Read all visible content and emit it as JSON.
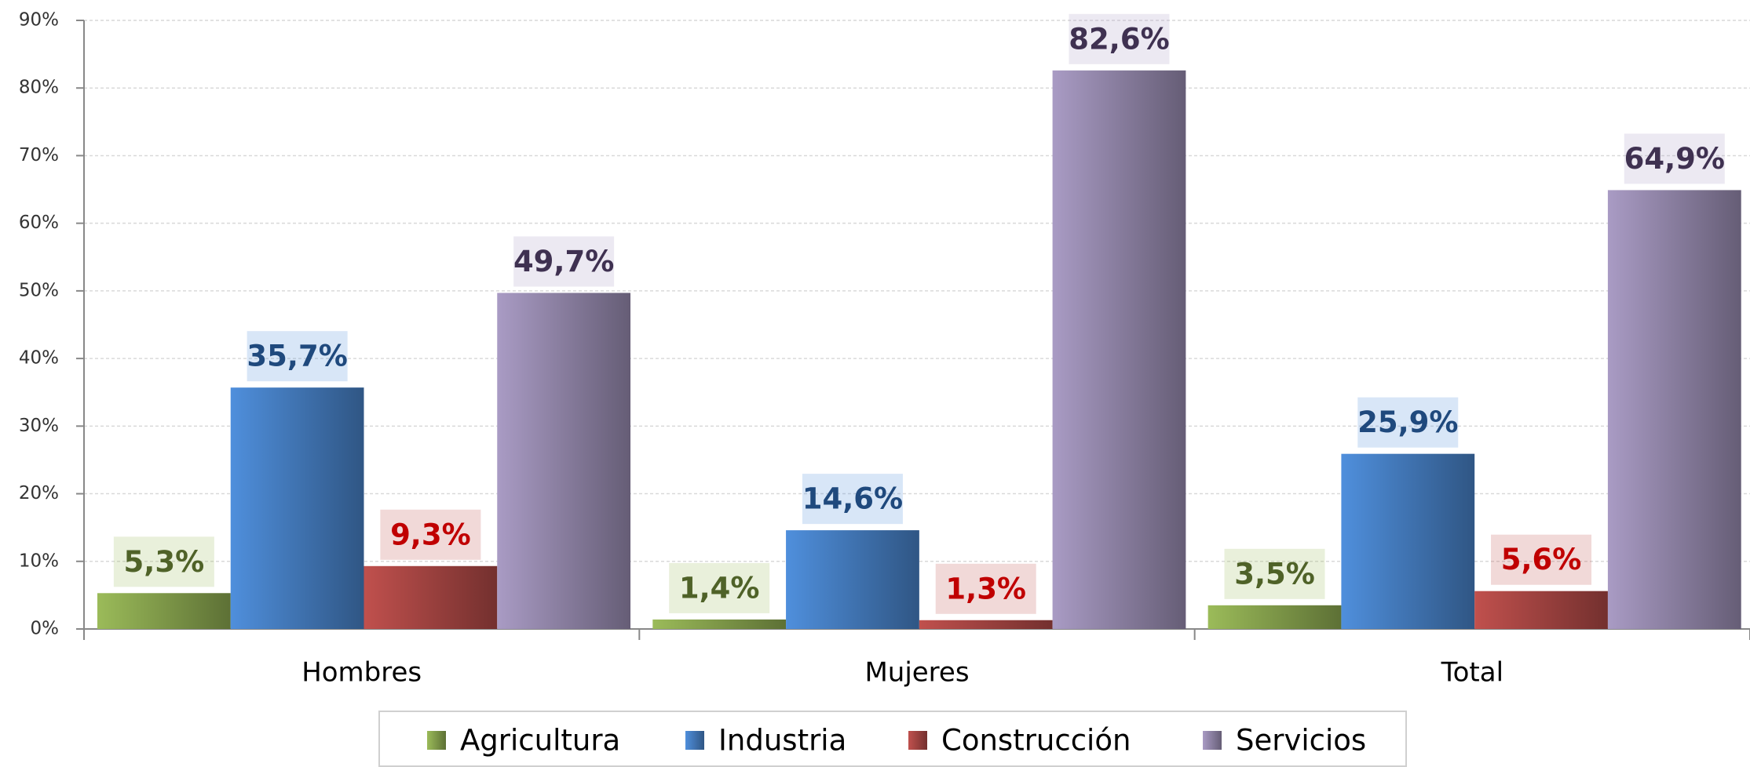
{
  "chart_data": {
    "type": "bar",
    "categories": [
      "Hombres",
      "Mujeres",
      "Total"
    ],
    "series": [
      {
        "name": "Agricultura",
        "color": "#9bbb59",
        "label_color": "#4f6228",
        "values": [
          5.3,
          1.4,
          3.5
        ],
        "value_labels": [
          "5,3%",
          "1,4%",
          "3,5%"
        ]
      },
      {
        "name": "Industria",
        "color": "#4f8fdc",
        "label_color": "#1f497d",
        "values": [
          35.7,
          14.6,
          25.9
        ],
        "value_labels": [
          "35,7%",
          "14,6%",
          "25,9%"
        ]
      },
      {
        "name": "Construcción",
        "color": "#c0504d",
        "label_color": "#c00000",
        "values": [
          9.3,
          1.3,
          5.6
        ],
        "value_labels": [
          "9,3%",
          "1,3%",
          "5,6%"
        ]
      },
      {
        "name": "Servicios",
        "color": "#a99bc4",
        "label_color": "#3f3151",
        "values": [
          49.7,
          82.6,
          64.9
        ],
        "value_labels": [
          "49,7%",
          "82,6%",
          "64,9%"
        ]
      }
    ],
    "ylim": [
      0,
      90
    ],
    "yticks": [
      {
        "value": 0,
        "label": "0%"
      },
      {
        "value": 10,
        "label": "10%"
      },
      {
        "value": 20,
        "label": "20%"
      },
      {
        "value": 30,
        "label": "30%"
      },
      {
        "value": 40,
        "label": "40%"
      },
      {
        "value": 50,
        "label": "50%"
      },
      {
        "value": 60,
        "label": "60%"
      },
      {
        "value": 70,
        "label": "70%"
      },
      {
        "value": 80,
        "label": "80%"
      },
      {
        "value": 90,
        "label": "90%"
      }
    ],
    "grid": true,
    "legend": "bottom"
  }
}
